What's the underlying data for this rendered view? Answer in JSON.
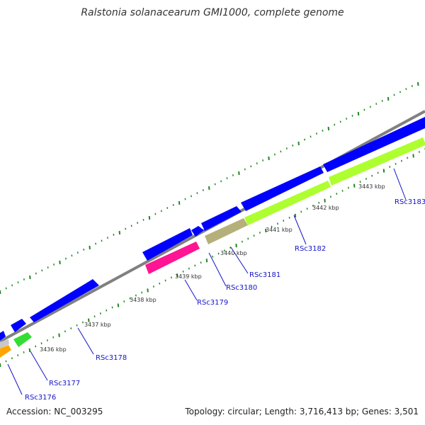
{
  "title": "Ralstonia solanacearum GMI1000, complete genome",
  "footer": {
    "accession": "Accession: NC_003295",
    "summary": "Topology: circular; Length: 3,716,413 bp; Genes: 3,501"
  },
  "colors": {
    "backbone": "#808080",
    "blue": "#0000ff",
    "magenta": "#ff1493",
    "olive": "#b5b07a",
    "lime": "#adff2f",
    "green": "#33dd33",
    "orange": "#ffa500",
    "tick": "#228822",
    "label": "#1414c8"
  },
  "ruler_labels": [
    "3436 kbp",
    "3437 kbp",
    "3438 kbp",
    "3439 kbp",
    "3440 kbp",
    "3441 kbp",
    "3442 kbp",
    "3443 kbp"
  ],
  "gene_labels": [
    "RSc3176",
    "RSc3177",
    "RSc3178",
    "RSc3179",
    "RSc3180",
    "RSc3181",
    "RSc3182",
    "RSc3183"
  ]
}
